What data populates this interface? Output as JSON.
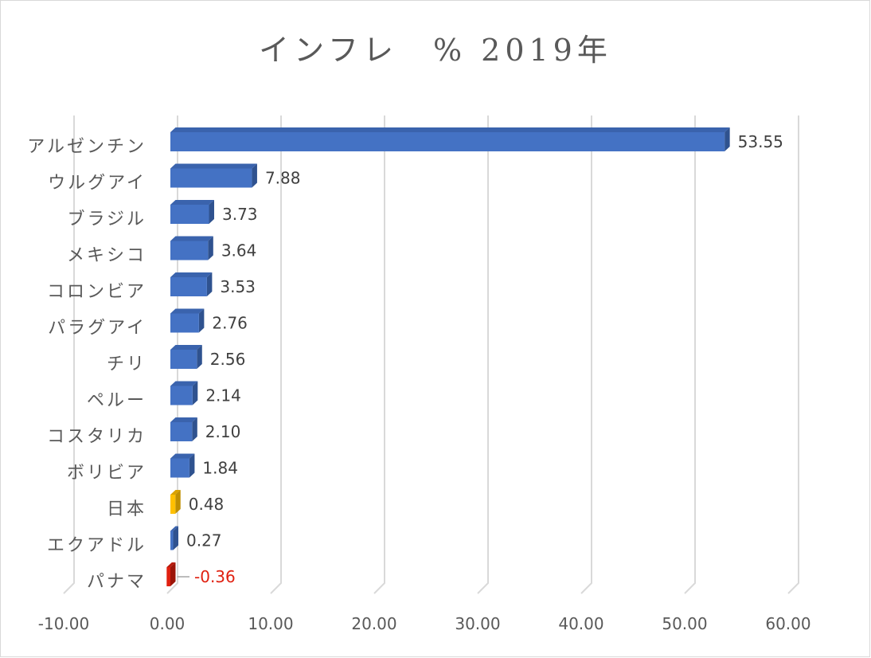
{
  "title": "インフレ　% 2019年",
  "colors": {
    "bar_default": "#4472c4",
    "bar_default_top": "#3a63ad",
    "bar_default_side": "#2f528f",
    "bar_highlight": "#ffc000",
    "bar_highlight_top": "#d9a200",
    "bar_highlight_side": "#bf8f00",
    "bar_negative": "#e02010",
    "bar_negative_top": "#b81a0c",
    "bar_negative_side": "#9c1408",
    "grid": "#d9d9d9",
    "text": "#595959",
    "negative_label": "#e02010"
  },
  "chart_data": {
    "type": "bar",
    "orientation": "horizontal",
    "style": "3d-clustered-bar",
    "title": "インフレ　% 2019年",
    "xlabel": "",
    "ylabel": "",
    "xlim": [
      -10,
      60
    ],
    "xticks": [
      -10,
      0,
      10,
      20,
      30,
      40,
      50,
      60
    ],
    "tick_labels": [
      "-10.00",
      "0.00",
      "10.00",
      "20.00",
      "30.00",
      "40.00",
      "50.00",
      "60.00"
    ],
    "grid": true,
    "legend": "none",
    "categories": [
      "アルゼンチン",
      "ウルグアイ",
      "ブラジル",
      "メキシコ",
      "コロンビア",
      "パラグアイ",
      "チリ",
      "ペルー",
      "コスタリカ",
      "ボリビア",
      "日本",
      "エクアドル",
      "パナマ"
    ],
    "values": [
      53.55,
      7.88,
      3.73,
      3.64,
      3.53,
      2.76,
      2.56,
      2.14,
      2.1,
      1.84,
      0.48,
      0.27,
      -0.36
    ],
    "data_labels": [
      "53.55",
      "7.88",
      "3.73",
      "3.64",
      "3.53",
      "2.76",
      "2.56",
      "2.14",
      "2.10",
      "1.84",
      "0.48",
      "0.27",
      "-0.36"
    ],
    "bar_color_roles": [
      "default",
      "default",
      "default",
      "default",
      "default",
      "default",
      "default",
      "default",
      "default",
      "default",
      "highlight",
      "default",
      "negative"
    ]
  }
}
